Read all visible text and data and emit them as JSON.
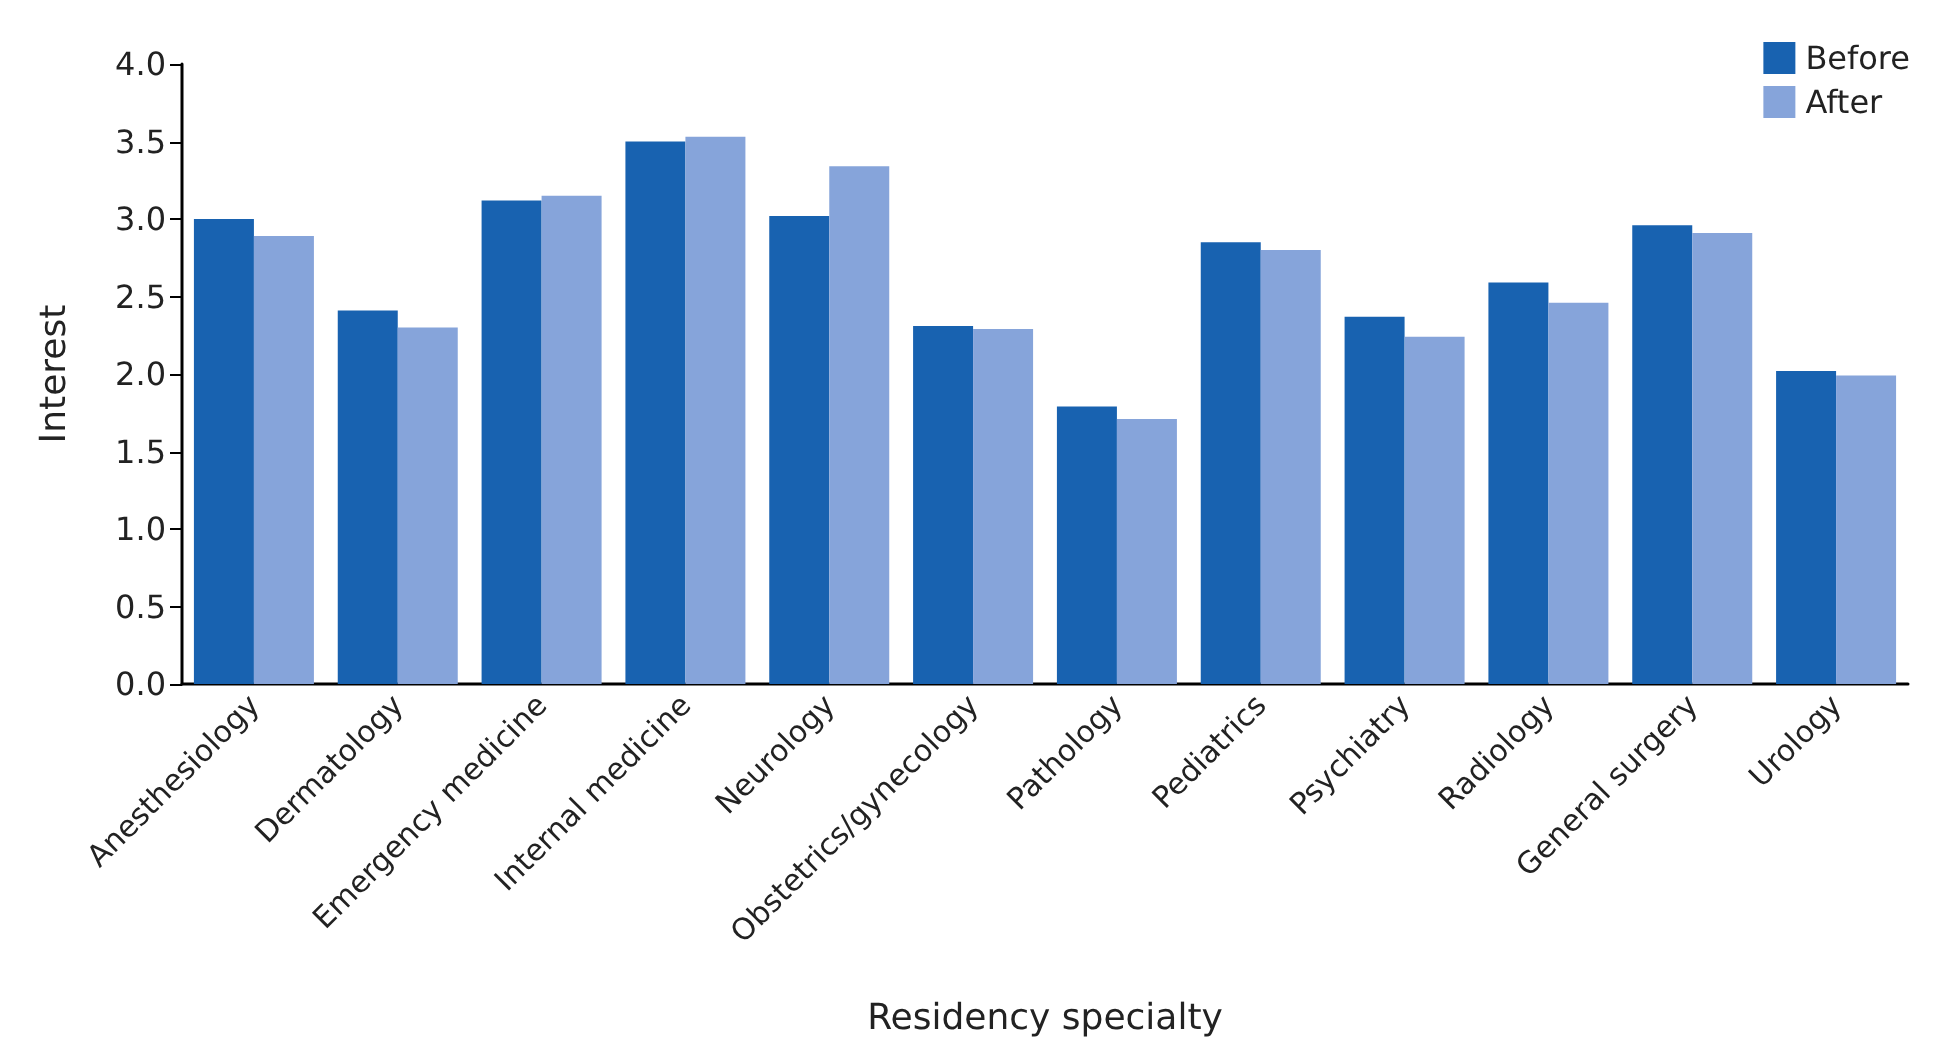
{
  "chart_data": {
    "type": "bar",
    "xlabel": "Residency specialty",
    "ylabel": "Interest",
    "categories": [
      "Anesthesiology",
      "Dermatology",
      "Emergency medicine",
      "Internal medicine",
      "Neurology",
      "Obstetrics/gynecology",
      "Pathology",
      "Pediatrics",
      "Psychiatry",
      "Radiology",
      "General surgery",
      "Urology"
    ],
    "series": [
      {
        "name": "Before",
        "color": "#1862b0",
        "values": [
          3.0,
          2.41,
          3.12,
          3.5,
          3.02,
          2.31,
          1.79,
          2.85,
          2.37,
          2.59,
          2.96,
          2.02
        ]
      },
      {
        "name": "After",
        "color": "#86a4da",
        "values": [
          2.89,
          2.3,
          3.15,
          3.53,
          3.34,
          2.29,
          1.71,
          2.8,
          2.24,
          2.46,
          2.91,
          1.99
        ]
      }
    ],
    "ylim": [
      0,
      4
    ],
    "yticks": [
      {
        "value": 0,
        "label": "0.0"
      },
      0.5,
      {
        "value": 1,
        "label": "1.0"
      },
      1.5,
      {
        "value": 2,
        "label": "2.0"
      },
      2.5,
      {
        "value": 3,
        "label": "3.0"
      },
      3.5,
      {
        "value": 4,
        "label": "4.0"
      }
    ],
    "grid": false,
    "legend": "top right"
  }
}
